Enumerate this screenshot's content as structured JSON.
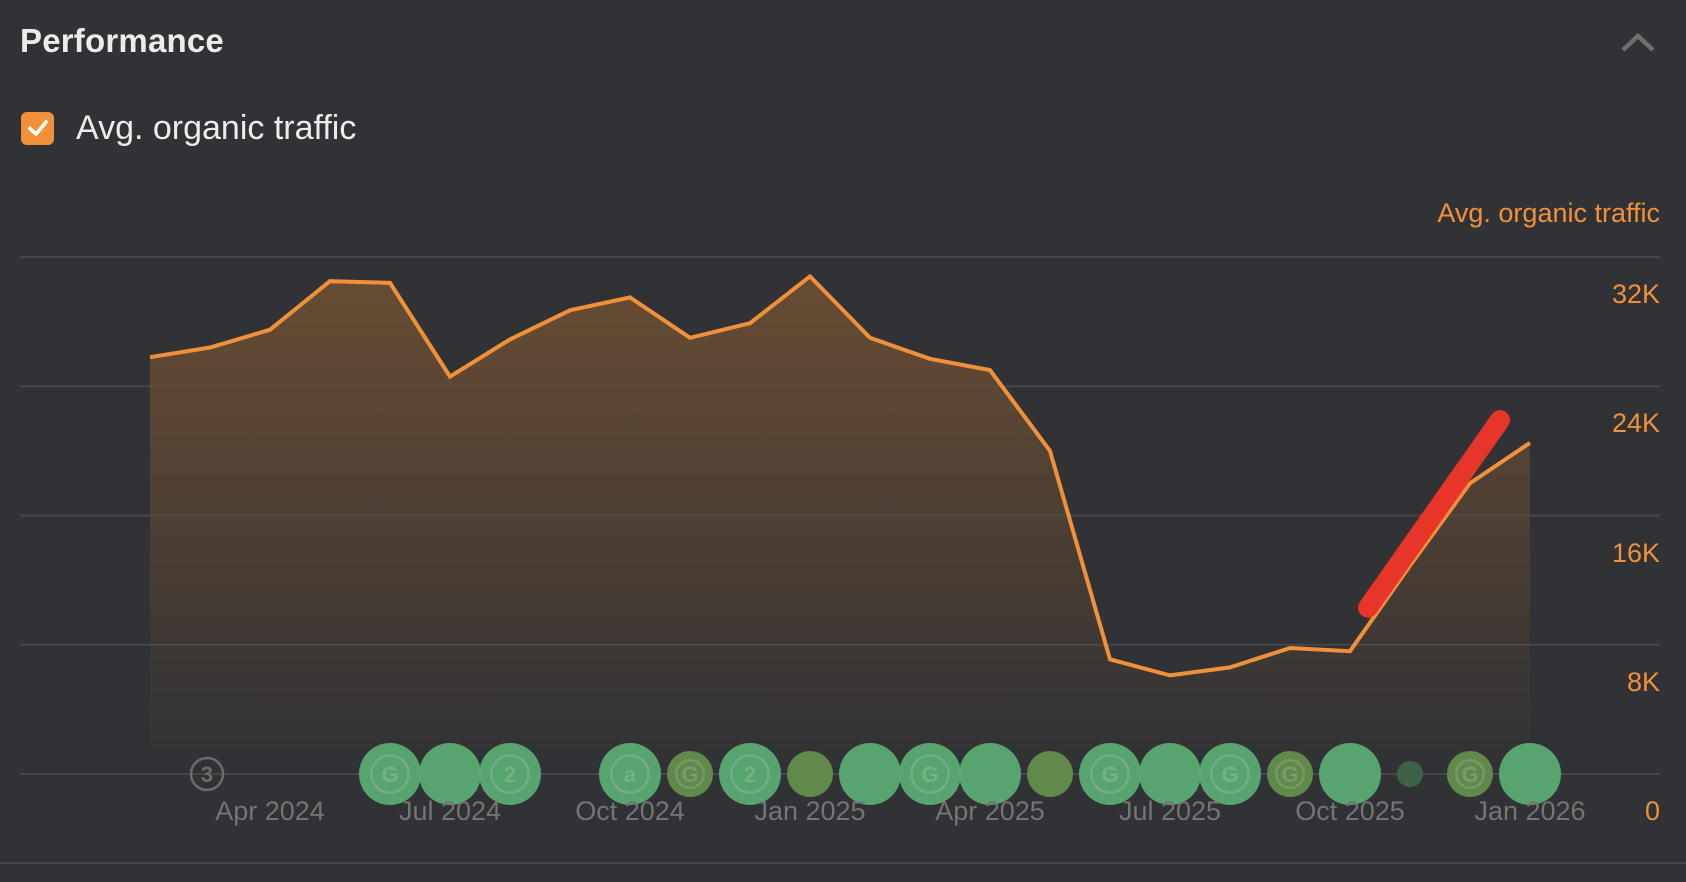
{
  "header": {
    "title": "Performance",
    "collapse_icon": "chevron-up-icon"
  },
  "legend": {
    "items": [
      {
        "label": "Avg. organic traffic",
        "checked": true,
        "color": "#f0913a"
      }
    ]
  },
  "colors": {
    "background": "#313235",
    "line": "#f0913a",
    "area_top": "#684c33",
    "gridline": "#47474a",
    "annotation_arrow": "#e8352a",
    "event_green": "#5aa872",
    "event_olive": "#638c4c",
    "event_dark": "#3f6448",
    "axis_text": "#747476"
  },
  "chart_data": {
    "type": "area",
    "title": "Performance",
    "ylabel": "Avg. organic traffic",
    "xlabel": "",
    "ylim": [
      0,
      32000
    ],
    "yticks": [
      "0",
      "8K",
      "16K",
      "24K",
      "32K"
    ],
    "ytick_values": [
      0,
      8000,
      16000,
      24000,
      32000
    ],
    "y_axis_position": "right",
    "grid": true,
    "legend": [
      "Avg. organic traffic"
    ],
    "legend_position": "top-left",
    "xtick_labels": [
      "Apr 2024",
      "Jul 2024",
      "Oct 2024",
      "Jan 2025",
      "Apr 2025",
      "Jul 2025",
      "Oct 2025",
      "Jan 2026"
    ],
    "xtick_indices": [
      2,
      5,
      8,
      11,
      14,
      17,
      20,
      23
    ],
    "x": [
      "Feb 2024",
      "Mar 2024",
      "Apr 2024",
      "May 2024",
      "Jun 2024",
      "Jul 2024",
      "Aug 2024",
      "Sep 2024",
      "Oct 2024",
      "Nov 2024",
      "Dec 2024",
      "Jan 2025",
      "Feb 2025",
      "Mar 2025",
      "Apr 2025",
      "May 2025",
      "Jun 2025",
      "Jul 2025",
      "Aug 2025",
      "Sep 2025",
      "Oct 2025",
      "Nov 2025",
      "Dec 2025",
      "Jan 2026"
    ],
    "series": [
      {
        "name": "Avg. organic traffic",
        "values": [
          25800,
          26400,
          27500,
          30500,
          30400,
          24600,
          26900,
          28700,
          29500,
          27000,
          27900,
          30800,
          27000,
          25700,
          25000,
          20000,
          7100,
          6100,
          6600,
          7800,
          7600,
          12900,
          18000,
          20500
        ]
      }
    ],
    "annotations": [
      {
        "type": "arrow-stroke",
        "description": "red upward trend mark",
        "from_index": 20.3,
        "from_value": 10300,
        "to_index": 22.5,
        "to_value": 21900
      }
    ],
    "events": [
      {
        "index": 0.95,
        "kind": "outline-count",
        "label": "3",
        "size": "small"
      },
      {
        "index": 4,
        "kind": "green",
        "label": "G",
        "size": "large"
      },
      {
        "index": 5,
        "kind": "green",
        "label": "",
        "size": "large"
      },
      {
        "index": 6,
        "kind": "green",
        "label": "2",
        "size": "large"
      },
      {
        "index": 8,
        "kind": "green",
        "label": "a",
        "size": "large"
      },
      {
        "index": 9,
        "kind": "olive",
        "label": "G",
        "size": "medium"
      },
      {
        "index": 10,
        "kind": "green",
        "label": "2",
        "size": "large"
      },
      {
        "index": 11,
        "kind": "olive",
        "label": "",
        "size": "medium"
      },
      {
        "index": 12,
        "kind": "green",
        "label": "",
        "size": "large"
      },
      {
        "index": 13,
        "kind": "green",
        "label": "G",
        "size": "large"
      },
      {
        "index": 14,
        "kind": "green",
        "label": "",
        "size": "large"
      },
      {
        "index": 15,
        "kind": "olive",
        "label": "",
        "size": "medium"
      },
      {
        "index": 16,
        "kind": "green",
        "label": "G",
        "size": "large"
      },
      {
        "index": 17,
        "kind": "green",
        "label": "",
        "size": "large"
      },
      {
        "index": 18,
        "kind": "green",
        "label": "G",
        "size": "large"
      },
      {
        "index": 19,
        "kind": "olive",
        "label": "G",
        "size": "medium"
      },
      {
        "index": 20,
        "kind": "green",
        "label": "",
        "size": "large"
      },
      {
        "index": 21,
        "kind": "dark",
        "label": "",
        "size": "tiny"
      },
      {
        "index": 22,
        "kind": "olive",
        "label": "G",
        "size": "medium"
      },
      {
        "index": 23,
        "kind": "green",
        "label": "",
        "size": "large"
      }
    ]
  }
}
